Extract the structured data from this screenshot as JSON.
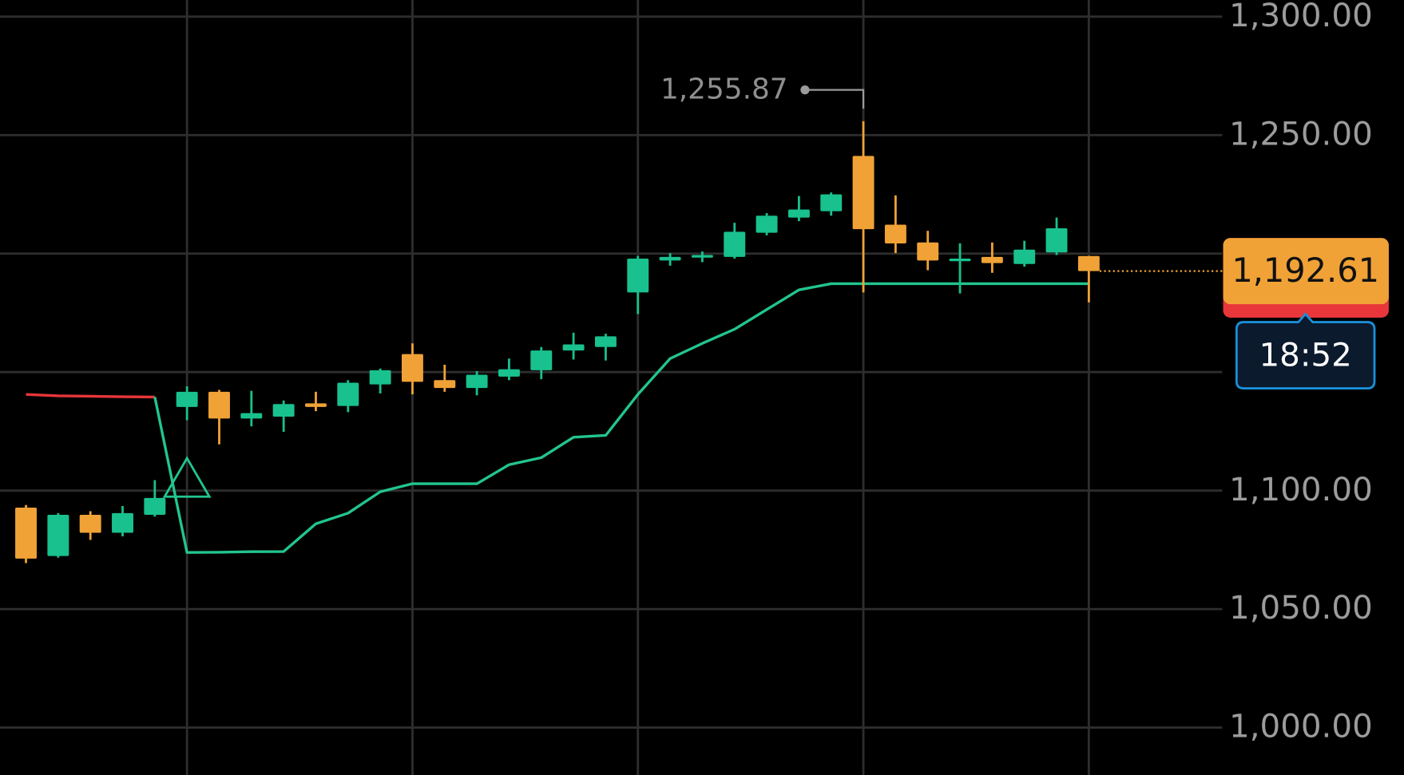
{
  "chart_data": {
    "type": "candlestick",
    "open": [
      1092.8,
      1072.4,
      1089.8,
      1082.2,
      1089.8,
      1135.3,
      1141.7,
      1130.4,
      1131.2,
      1136.8,
      1135.7,
      1144.8,
      1157.6,
      1146.6,
      1143.3,
      1148.1,
      1150.8,
      1159.1,
      1160.6,
      1183.6,
      1197.1,
      1198.3,
      1198.6,
      1208.8,
      1215.2,
      1217.9,
      1241.2,
      1212.2,
      1204.7,
      1196.8,
      1198.6,
      1195.6,
      1200.5,
      1199.0
    ],
    "high": [
      1093.9,
      1090.5,
      1091.3,
      1093.5,
      1104.4,
      1144.0,
      1142.5,
      1142.1,
      1138.0,
      1141.7,
      1146.6,
      1151.5,
      1162.1,
      1153.1,
      1150.4,
      1155.7,
      1160.6,
      1166.6,
      1166.2,
      1199.0,
      1200.2,
      1200.9,
      1213.0,
      1217.1,
      1224.3,
      1225.8,
      1255.87,
      1224.6,
      1209.6,
      1204.3,
      1204.7,
      1205.4,
      1215.2,
      1199.0
    ],
    "low": [
      1069.4,
      1071.7,
      1079.2,
      1080.7,
      1089.0,
      1129.7,
      1119.5,
      1127.1,
      1124.8,
      1133.5,
      1133.1,
      1141.0,
      1140.6,
      1141.7,
      1140.2,
      1146.6,
      1147.0,
      1155.3,
      1154.9,
      1174.5,
      1194.9,
      1196.4,
      1197.9,
      1207.7,
      1213.7,
      1216.0,
      1183.6,
      1200.2,
      1193.0,
      1183.2,
      1191.9,
      1194.5,
      1199.4,
      1179.4
    ],
    "close": [
      1071.3,
      1089.8,
      1082.2,
      1090.5,
      1096.9,
      1141.7,
      1130.4,
      1132.7,
      1136.5,
      1135.3,
      1145.5,
      1150.8,
      1145.9,
      1143.3,
      1148.9,
      1151.2,
      1159.1,
      1161.7,
      1165.1,
      1197.9,
      1198.6,
      1199.4,
      1209.2,
      1216.0,
      1218.6,
      1225.0,
      1210.3,
      1204.3,
      1197.1,
      1197.9,
      1196.0,
      1201.7,
      1210.7,
      1192.61
    ],
    "up_color": "#19c18e",
    "down_color": "#f0a237",
    "lines": [
      {
        "color": "#e8363a",
        "values": [
          1140.6,
          1140.0,
          1139.8,
          1139.6,
          1139.5,
          null,
          null,
          null,
          null,
          null,
          null,
          null,
          null,
          null,
          null,
          null,
          null,
          null,
          null,
          null,
          null,
          null,
          null,
          null,
          null,
          null,
          null,
          null,
          null,
          null,
          null,
          null,
          null,
          null
        ]
      },
      {
        "color": "#22c58e",
        "values": [
          null,
          null,
          null,
          null,
          1139.5,
          1073.9,
          1074.0,
          1074.2,
          1074.3,
          1086.0,
          1090.5,
          1099.5,
          1102.9,
          1102.9,
          1102.9,
          1110.9,
          1113.9,
          1122.5,
          1123.3,
          1140.6,
          1155.7,
          1162.1,
          1168.1,
          1176.4,
          1184.7,
          1187.3,
          1187.3,
          1187.3,
          1187.3,
          1187.3,
          1187.3,
          1187.3,
          1187.3,
          1187.3
        ]
      }
    ],
    "ylim": [
      980,
      1307
    ],
    "yticks": [
      {
        "value": 1000,
        "label": "1,000.00"
      },
      {
        "value": 1050,
        "label": "1,050.00"
      },
      {
        "value": 1100,
        "label": "1,100.00"
      },
      {
        "value": 1150,
        "label": null
      },
      {
        "value": 1200,
        "label": null
      },
      {
        "value": 1250,
        "label": "1,250.00"
      },
      {
        "value": 1300,
        "label": "1,300.00"
      }
    ],
    "grid": true,
    "high_annotation": {
      "value": 1255.87,
      "label": "1,255.87"
    },
    "last_price": {
      "value": 1192.61,
      "label": "1,192.61"
    },
    "countdown": "18:52"
  }
}
